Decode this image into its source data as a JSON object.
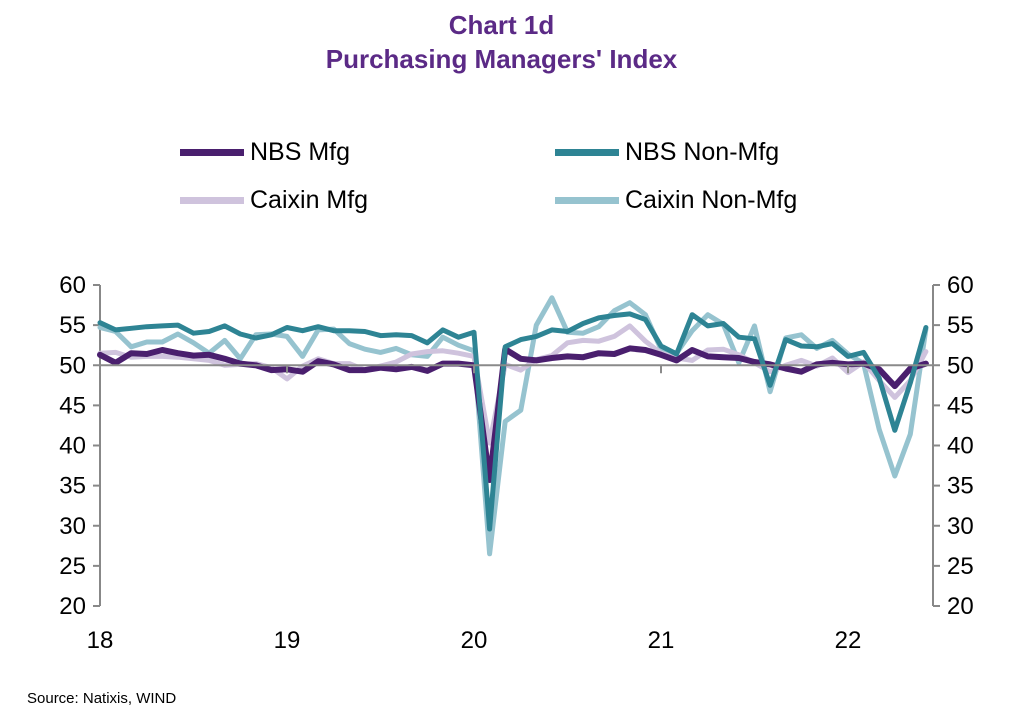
{
  "title": "Chart 1d",
  "subtitle": "Purchasing Managers' Index",
  "source": "Source: Natixis, WIND",
  "chart_data": {
    "type": "line",
    "title": "Chart 1d",
    "subtitle": "Purchasing Managers' Index",
    "x_start": "2018-01",
    "x_ticks": [
      "18",
      "19",
      "20",
      "21",
      "22"
    ],
    "y_ticks": [
      "60",
      "55",
      "50",
      "45",
      "40",
      "35",
      "30",
      "25",
      "20"
    ],
    "ylim": [
      20,
      60
    ],
    "reference_line": 50,
    "legend_position": "top",
    "series": [
      {
        "name": "NBS Mfg",
        "color": "#4a1f6e",
        "values": [
          51.3,
          50.3,
          51.5,
          51.4,
          51.9,
          51.5,
          51.2,
          51.3,
          50.8,
          50.2,
          50.0,
          49.4,
          49.5,
          49.2,
          50.5,
          50.1,
          49.4,
          49.4,
          49.7,
          49.5,
          49.8,
          49.3,
          50.2,
          50.2,
          50.0,
          35.7,
          52.0,
          50.8,
          50.6,
          50.9,
          51.1,
          51.0,
          51.5,
          51.4,
          52.1,
          51.9,
          51.3,
          50.6,
          51.9,
          51.1,
          51.0,
          50.9,
          50.4,
          50.1,
          49.6,
          49.2,
          50.1,
          50.3,
          50.1,
          50.2,
          49.5,
          47.4,
          49.6,
          50.2
        ]
      },
      {
        "name": "NBS Non-Mfg",
        "color": "#2e8494",
        "values": [
          55.3,
          54.4,
          54.6,
          54.8,
          54.9,
          55.0,
          54.0,
          54.2,
          54.9,
          53.9,
          53.4,
          53.8,
          54.7,
          54.3,
          54.8,
          54.3,
          54.3,
          54.2,
          53.7,
          53.8,
          53.7,
          52.8,
          54.4,
          53.5,
          54.1,
          29.6,
          52.3,
          53.2,
          53.6,
          54.4,
          54.2,
          55.2,
          55.9,
          56.2,
          56.4,
          55.7,
          52.4,
          51.4,
          56.3,
          54.9,
          55.2,
          53.5,
          53.3,
          47.5,
          53.2,
          52.4,
          52.3,
          52.7,
          51.1,
          51.6,
          48.4,
          41.9,
          47.8,
          54.7
        ]
      },
      {
        "name": "Caixin Mfg",
        "color": "#cfc3dd",
        "values": [
          51.5,
          51.6,
          51.0,
          51.1,
          51.1,
          51.0,
          50.8,
          50.6,
          50.0,
          50.1,
          50.2,
          49.7,
          48.3,
          49.9,
          50.8,
          50.2,
          50.2,
          49.4,
          49.9,
          50.4,
          51.4,
          51.7,
          51.8,
          51.5,
          51.1,
          40.3,
          50.1,
          49.4,
          50.7,
          51.2,
          52.8,
          53.1,
          53.0,
          53.6,
          54.9,
          53.0,
          51.5,
          50.9,
          50.6,
          51.9,
          52.0,
          51.3,
          50.3,
          49.2,
          50.0,
          50.6,
          49.9,
          50.9,
          49.1,
          50.4,
          48.1,
          46.0,
          48.1,
          51.7
        ]
      },
      {
        "name": "Caixin Non-Mfg",
        "color": "#96c3cf",
        "values": [
          54.7,
          54.2,
          52.3,
          52.9,
          52.9,
          53.9,
          52.8,
          51.5,
          53.1,
          50.8,
          53.8,
          53.9,
          53.6,
          51.1,
          54.4,
          54.5,
          52.7,
          52.0,
          51.6,
          52.1,
          51.3,
          51.1,
          53.5,
          52.5,
          51.8,
          26.5,
          43.0,
          44.4,
          55.0,
          58.4,
          54.1,
          54.0,
          54.8,
          56.8,
          57.8,
          56.3,
          52.0,
          51.5,
          54.3,
          56.3,
          55.1,
          50.3,
          54.9,
          46.7,
          53.4,
          53.8,
          52.1,
          53.1,
          51.4,
          50.2,
          42.0,
          36.2,
          41.4,
          54.5
        ]
      }
    ]
  }
}
